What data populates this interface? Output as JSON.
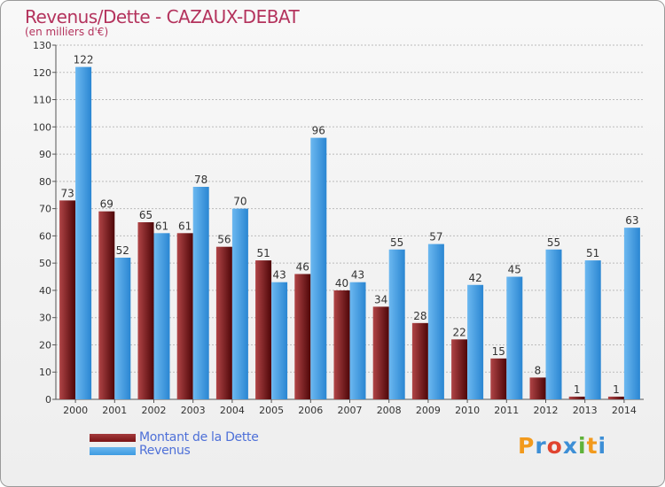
{
  "title": "Revenus/Dette - CAZAUX-DEBAT",
  "subtitle": "(en milliers d'€)",
  "colors": {
    "dette": "#7a1416",
    "revenus": "#3d9be2",
    "title": "#b4335d",
    "legend_text": "#4e70d8"
  },
  "legend": [
    {
      "label": "Montant de la Dette",
      "color": "#7a1416"
    },
    {
      "label": "Revenus",
      "color": "#3d9be2"
    }
  ],
  "logo": {
    "text": "Proxiti"
  },
  "chart_data": {
    "type": "bar",
    "categories": [
      "2000",
      "2001",
      "2002",
      "2003",
      "2004",
      "2005",
      "2006",
      "2007",
      "2008",
      "2009",
      "2010",
      "2011",
      "2012",
      "2013",
      "2014"
    ],
    "series": [
      {
        "name": "Montant de la Dette",
        "values": [
          73,
          69,
          65,
          61,
          56,
          51,
          46,
          40,
          34,
          28,
          22,
          15,
          8,
          1,
          1
        ]
      },
      {
        "name": "Revenus",
        "values": [
          122,
          52,
          61,
          78,
          70,
          43,
          96,
          43,
          55,
          57,
          42,
          45,
          55,
          51,
          63
        ]
      }
    ],
    "ylim": [
      0,
      130
    ],
    "yticks": [
      0,
      10,
      20,
      30,
      40,
      50,
      60,
      70,
      80,
      90,
      100,
      110,
      120,
      130
    ],
    "grid": true,
    "legend_position": "bottom-left",
    "xlabel": "",
    "ylabel": ""
  }
}
